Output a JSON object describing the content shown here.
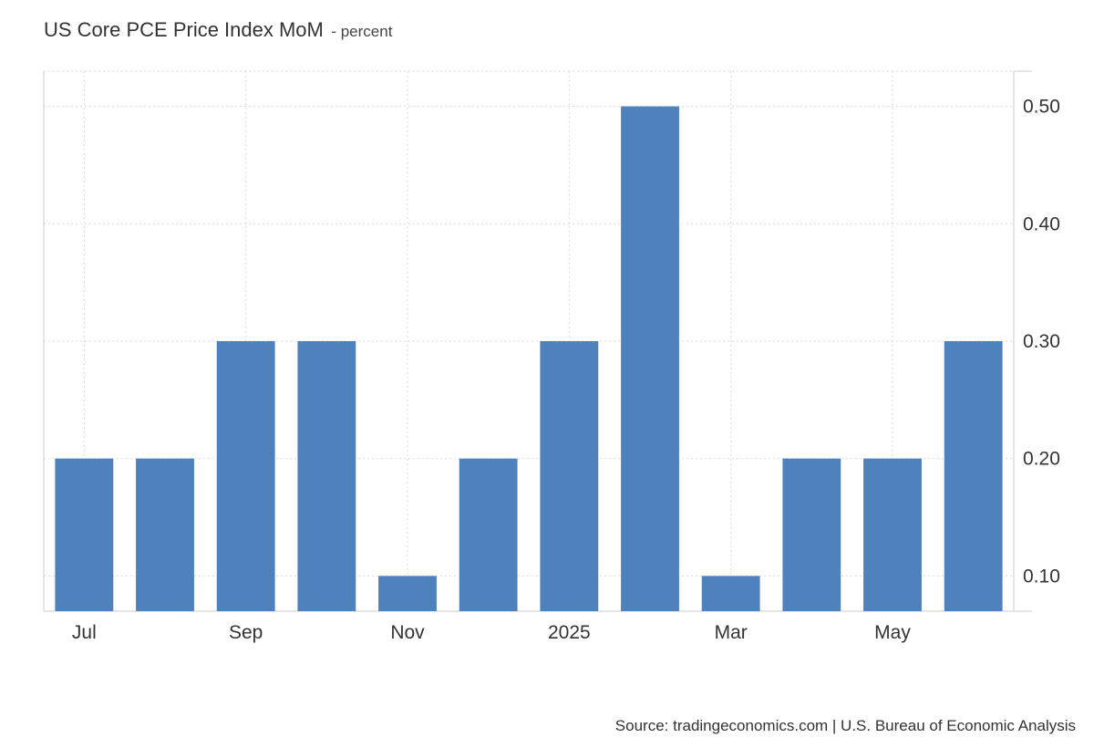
{
  "title": "US Core PCE Price Index MoM",
  "subtitle": "- percent",
  "source": "Source: tradingeconomics.com | U.S. Bureau of Economic Analysis",
  "chart_data": {
    "type": "bar",
    "title": "US Core PCE Price Index MoM",
    "unit": "percent",
    "categories": [
      "2024-07",
      "2024-08",
      "2024-09",
      "2024-10",
      "2024-11",
      "2024-12",
      "2025-01",
      "2025-02",
      "2025-03",
      "2025-04",
      "2025-05",
      "2025-06"
    ],
    "values": [
      0.2,
      0.2,
      0.3,
      0.3,
      0.1,
      0.2,
      0.3,
      0.5,
      0.1,
      0.2,
      0.2,
      0.3
    ],
    "x_tick_labels": [
      {
        "category": "2024-07",
        "label": "Jul"
      },
      {
        "category": "2024-09",
        "label": "Sep"
      },
      {
        "category": "2024-11",
        "label": "Nov"
      },
      {
        "category": "2025-01",
        "label": "2025"
      },
      {
        "category": "2025-03",
        "label": "Mar"
      },
      {
        "category": "2025-05",
        "label": "May"
      }
    ],
    "y_ticks": [
      "0.10",
      "0.20",
      "0.30",
      "0.40",
      "0.50"
    ],
    "ylim": [
      0.07,
      0.53
    ],
    "y_axis_side": "right",
    "grid": true,
    "bar_color": "#4f81bd"
  }
}
